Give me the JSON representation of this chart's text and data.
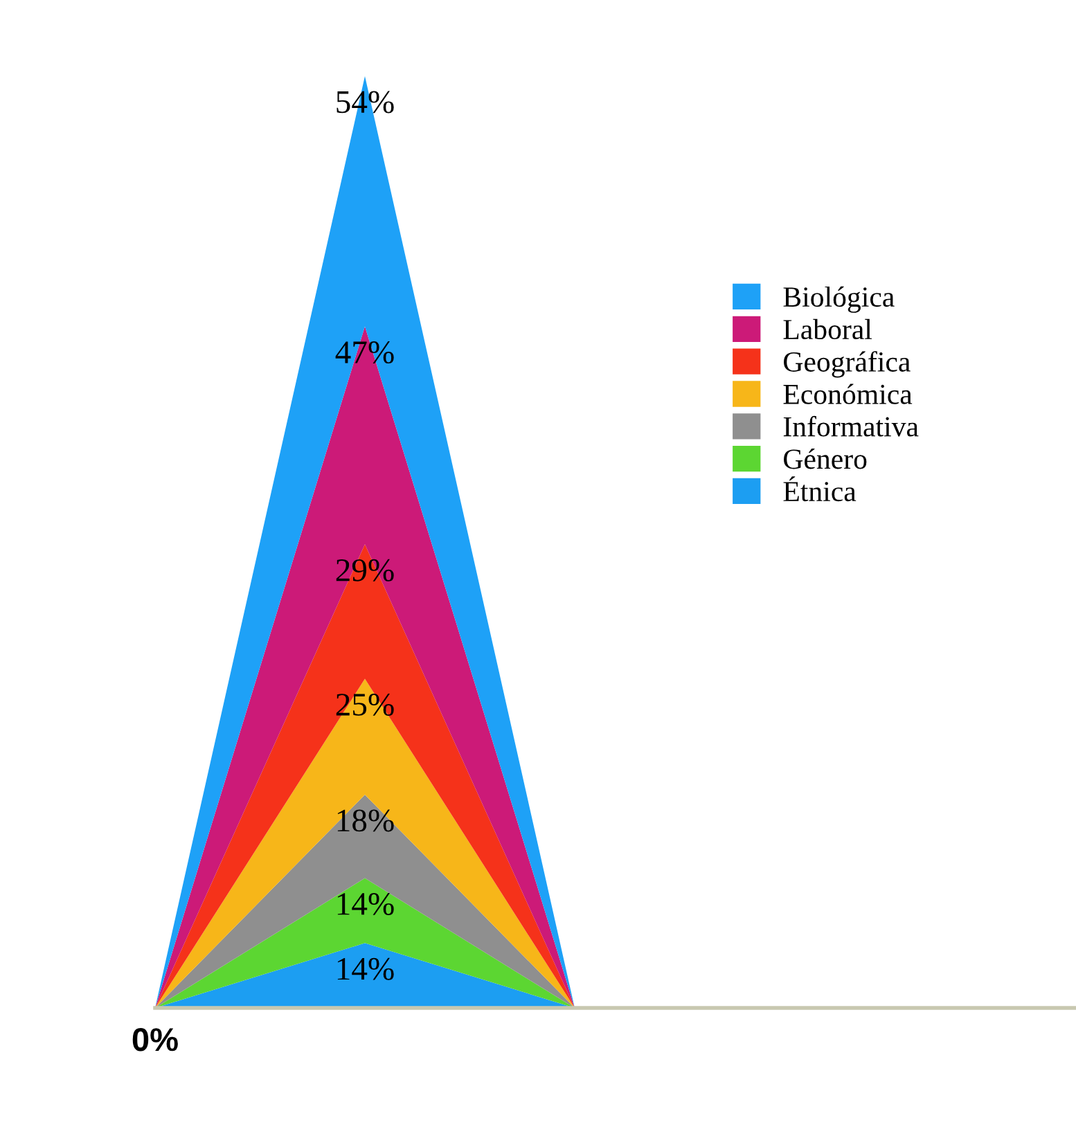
{
  "chart_data": {
    "type": "area",
    "stacked": true,
    "categories": [
      null,
      null,
      null
    ],
    "annotations": [
      "0%"
    ],
    "series": [
      {
        "name": "Étnica",
        "color": "#1c9ef2",
        "values": [
          0,
          14,
          0
        ],
        "value_labels": [
          null,
          "14%",
          null
        ]
      },
      {
        "name": "Género",
        "color": "#5cd632",
        "values": [
          0,
          14,
          0
        ],
        "value_labels": [
          null,
          "14%",
          null
        ]
      },
      {
        "name": "Informativa",
        "color": "#8f8f8f",
        "values": [
          0,
          18,
          0
        ],
        "value_labels": [
          null,
          "18%",
          null
        ]
      },
      {
        "name": "Económica",
        "color": "#f7b619",
        "values": [
          0,
          25,
          0
        ],
        "value_labels": [
          null,
          "25%",
          null
        ]
      },
      {
        "name": "Geográfica",
        "color": "#f5321a",
        "values": [
          0,
          29,
          0
        ],
        "value_labels": [
          null,
          "29%",
          null
        ]
      },
      {
        "name": "Laboral",
        "color": "#cc1a78",
        "values": [
          0,
          47,
          0
        ],
        "value_labels": [
          null,
          "47%",
          null
        ]
      },
      {
        "name": "Biológica",
        "color": "#1ea1f7",
        "values": [
          0,
          54,
          0
        ],
        "value_labels": [
          null,
          "54%",
          null
        ]
      }
    ],
    "legend": "right",
    "grid": false
  }
}
